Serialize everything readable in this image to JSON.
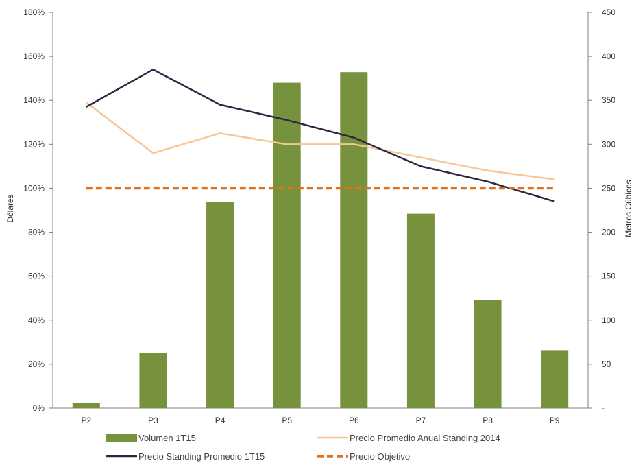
{
  "chart_data": {
    "type": "bar+line",
    "categories": [
      "P2",
      "P3",
      "P4",
      "P5",
      "P6",
      "P7",
      "P8",
      "P9"
    ],
    "ylabel_left": "Dólares",
    "ylabel_right": "Metros Cúbicos",
    "ylim_left": [
      0,
      180
    ],
    "ylim_right": [
      0,
      450
    ],
    "left_ticks": [
      "0%",
      "20%",
      "40%",
      "60%",
      "80%",
      "100%",
      "120%",
      "140%",
      "160%",
      "180%"
    ],
    "right_ticks": [
      "-",
      "50",
      "100",
      "150",
      "200",
      "250",
      "300",
      "350",
      "400",
      "450"
    ],
    "grid": false,
    "legend_position": "bottom",
    "series": [
      {
        "name": "Volumen 1T15",
        "kind": "bar",
        "axis": "right",
        "color": "#76923c",
        "values": [
          6,
          63,
          234,
          370,
          382,
          221,
          123,
          66
        ]
      },
      {
        "name": "Precio Promedio Anual Standing 2014",
        "kind": "line",
        "axis": "left",
        "color": "#f7c596",
        "values": [
          139,
          116,
          125,
          120,
          120,
          114,
          108,
          104
        ]
      },
      {
        "name": "Precio Standing Promedio 1T15",
        "kind": "line",
        "axis": "left",
        "color": "#2e2540",
        "values": [
          137,
          154,
          138,
          131,
          123,
          110,
          103,
          94
        ]
      },
      {
        "name": "Precio Objetivo",
        "kind": "dashed",
        "axis": "left",
        "color": "#e07020",
        "values": [
          100,
          100,
          100,
          100,
          100,
          100,
          100,
          100
        ]
      }
    ]
  }
}
